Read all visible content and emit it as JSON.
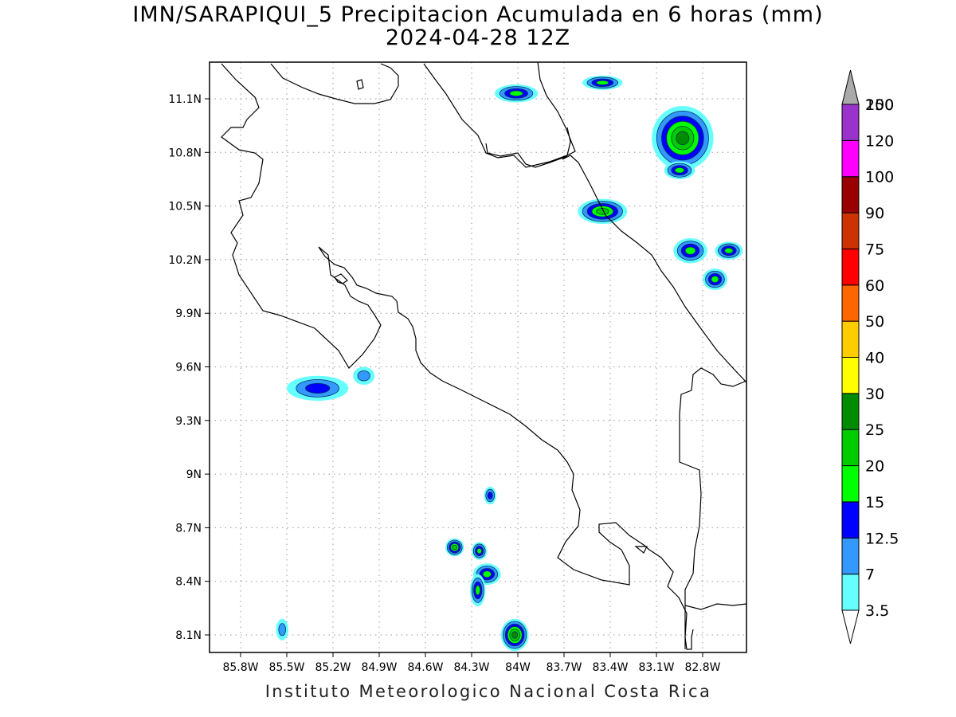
{
  "title": {
    "line1": "IMN/SARAPIQUI_5 Precipitacion Acumulada en 6 horas (mm)",
    "line2": "2024-04-28 12Z"
  },
  "footer": {
    "credit": "Instituto Meteorologico Nacional Costa Rica"
  },
  "map": {
    "lon_range": [
      -86.1,
      -83.1
    ],
    "lat_range": [
      8.0,
      11.3
    ],
    "lon_ticks": [
      {
        "value": -85.8,
        "label": "85.8W"
      },
      {
        "value": -85.5,
        "label": "85.5W"
      },
      {
        "value": -85.2,
        "label": "85.2W"
      },
      {
        "value": -84.9,
        "label": "84.9W"
      },
      {
        "value": -84.6,
        "label": "84.6W"
      },
      {
        "value": -84.3,
        "label": "84.3W"
      },
      {
        "value": -84.0,
        "label": "84W"
      },
      {
        "value": -83.7,
        "label": "83.7W"
      },
      {
        "value": -83.4,
        "label": "83.4W"
      },
      {
        "value": -83.1,
        "label": "83.1W"
      },
      {
        "value": -82.8,
        "label": "82.8W"
      }
    ],
    "lat_ticks": [
      {
        "value": 11.1,
        "label": "11.1N"
      },
      {
        "value": 10.8,
        "label": "10.8N"
      },
      {
        "value": 10.5,
        "label": "10.5N"
      },
      {
        "value": 10.2,
        "label": "10.2N"
      },
      {
        "value": 9.9,
        "label": "9.9N"
      },
      {
        "value": 9.6,
        "label": "9.6N"
      },
      {
        "value": 9.3,
        "label": "9.3N"
      },
      {
        "value": 9.0,
        "label": "9N"
      },
      {
        "value": 8.7,
        "label": "8.7N"
      },
      {
        "value": 8.4,
        "label": "8.4N"
      },
      {
        "value": 8.1,
        "label": "8.1N"
      }
    ],
    "grid": true,
    "grid_style": "dotted",
    "precip_cells": [
      {
        "lon": -84.01,
        "lat": 11.13,
        "rx": 0.14,
        "ry": 0.05,
        "level": 3
      },
      {
        "lon": -83.45,
        "lat": 11.19,
        "rx": 0.13,
        "ry": 0.04,
        "level": 3
      },
      {
        "lon": -82.93,
        "lat": 10.88,
        "rx": 0.2,
        "ry": 0.18,
        "level": 5
      },
      {
        "lon": -82.95,
        "lat": 10.7,
        "rx": 0.1,
        "ry": 0.05,
        "level": 3
      },
      {
        "lon": -83.45,
        "lat": 10.47,
        "rx": 0.16,
        "ry": 0.07,
        "level": 4
      },
      {
        "lon": -82.88,
        "lat": 10.25,
        "rx": 0.11,
        "ry": 0.07,
        "level": 3
      },
      {
        "lon": -82.63,
        "lat": 10.25,
        "rx": 0.09,
        "ry": 0.05,
        "level": 3
      },
      {
        "lon": -82.72,
        "lat": 10.09,
        "rx": 0.08,
        "ry": 0.06,
        "level": 3
      },
      {
        "lon": -85.3,
        "lat": 9.48,
        "rx": 0.2,
        "ry": 0.07,
        "level": 2
      },
      {
        "lon": -85.0,
        "lat": 9.55,
        "rx": 0.07,
        "ry": 0.05,
        "level": 1
      },
      {
        "lon": -84.41,
        "lat": 8.59,
        "rx": 0.06,
        "ry": 0.05,
        "level": 4
      },
      {
        "lon": -84.25,
        "lat": 8.57,
        "rx": 0.05,
        "ry": 0.05,
        "level": 3
      },
      {
        "lon": -84.2,
        "lat": 8.44,
        "rx": 0.09,
        "ry": 0.06,
        "level": 3
      },
      {
        "lon": -84.26,
        "lat": 8.35,
        "rx": 0.05,
        "ry": 0.09,
        "level": 3
      },
      {
        "lon": -84.18,
        "lat": 8.88,
        "rx": 0.04,
        "ry": 0.05,
        "level": 2
      },
      {
        "lon": -84.02,
        "lat": 8.1,
        "rx": 0.09,
        "ry": 0.09,
        "level": 5
      },
      {
        "lon": -85.53,
        "lat": 8.13,
        "rx": 0.04,
        "ry": 0.06,
        "level": 1
      }
    ]
  },
  "legend": {
    "levels": [
      {
        "label": "3.5",
        "color": "#66ffff"
      },
      {
        "label": "7",
        "color": "#3399ff"
      },
      {
        "label": "12.5",
        "color": "#0000ff"
      },
      {
        "label": "15",
        "color": "#00ff00"
      },
      {
        "label": "20",
        "color": "#00cc00"
      },
      {
        "label": "25",
        "color": "#008c00"
      },
      {
        "label": "30",
        "color": "#ffff00"
      },
      {
        "label": "40",
        "color": "#ffcc00"
      },
      {
        "label": "50",
        "color": "#ff6600"
      },
      {
        "label": "60",
        "color": "#ff0000"
      },
      {
        "label": "75",
        "color": "#cc3300"
      },
      {
        "label": "90",
        "color": "#990000"
      },
      {
        "label": "100",
        "color": "#ff00ff"
      },
      {
        "label": "120",
        "color": "#9933cc"
      },
      {
        "label": "150",
        "color": "#f5f5f5"
      },
      {
        "label": "200",
        "color": "#aaaaaa"
      }
    ]
  }
}
